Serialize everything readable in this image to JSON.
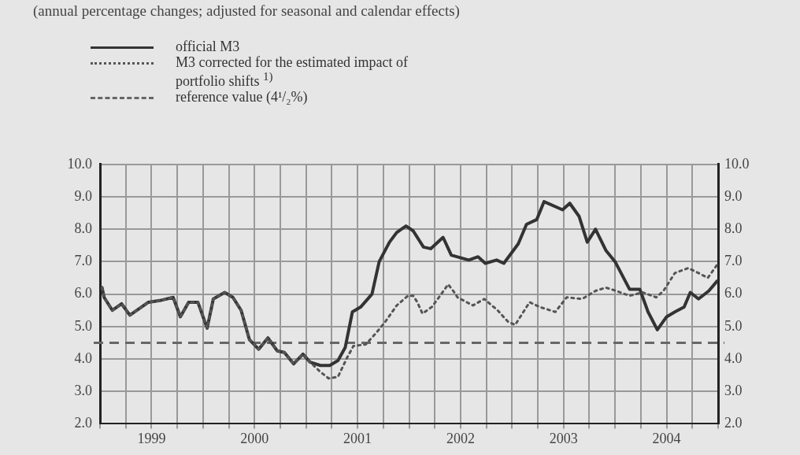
{
  "chart_data": {
    "type": "line",
    "title": "(annual percentage changes; adjusted for seasonal and calendar effects)",
    "xlim": [
      1999,
      2005
    ],
    "xticks": [
      {
        "value": 1999,
        "label": null
      },
      {
        "value": 1999.25,
        "label": null
      },
      {
        "value": 1999.5,
        "label": "1999"
      },
      {
        "value": 1999.75,
        "label": null
      },
      {
        "value": 2000,
        "label": null
      },
      {
        "value": 2000.25,
        "label": null
      },
      {
        "value": 2000.5,
        "label": "2000"
      },
      {
        "value": 2000.75,
        "label": null
      },
      {
        "value": 2001,
        "label": null
      },
      {
        "value": 2001.25,
        "label": null
      },
      {
        "value": 2001.5,
        "label": "2001"
      },
      {
        "value": 2001.75,
        "label": null
      },
      {
        "value": 2002,
        "label": null
      },
      {
        "value": 2002.25,
        "label": null
      },
      {
        "value": 2002.5,
        "label": "2002"
      },
      {
        "value": 2002.75,
        "label": null
      },
      {
        "value": 2003,
        "label": null
      },
      {
        "value": 2003.25,
        "label": null
      },
      {
        "value": 2003.5,
        "label": "2003"
      },
      {
        "value": 2003.75,
        "label": null
      },
      {
        "value": 2004,
        "label": null
      },
      {
        "value": 2004.25,
        "label": null
      },
      {
        "value": 2004.5,
        "label": "2004"
      },
      {
        "value": 2004.75,
        "label": null
      },
      {
        "value": 2005,
        "label": null
      }
    ],
    "ylim": [
      2,
      10
    ],
    "yticks": [
      {
        "value": 2,
        "label": "2.0"
      },
      {
        "value": 3,
        "label": "3.0"
      },
      {
        "value": 4,
        "label": "4.0"
      },
      {
        "value": 5,
        "label": "5.0"
      },
      {
        "value": 6,
        "label": "6.0"
      },
      {
        "value": 7,
        "label": "7.0"
      },
      {
        "value": 8,
        "label": "8.0"
      },
      {
        "value": 9,
        "label": "9.0"
      },
      {
        "value": 10,
        "label": "10.0"
      }
    ],
    "y2lim": [
      2,
      10
    ],
    "y2ticks": [
      {
        "value": 2,
        "label": "2.0"
      },
      {
        "value": 3,
        "label": "3.0"
      },
      {
        "value": 4,
        "label": "4.0"
      },
      {
        "value": 5,
        "label": "5.0"
      },
      {
        "value": 6,
        "label": "6.0"
      },
      {
        "value": 7,
        "label": "7.0"
      },
      {
        "value": 8,
        "label": "8.0"
      },
      {
        "value": 9,
        "label": "9.0"
      },
      {
        "value": 10,
        "label": "10.0"
      }
    ],
    "grid": true,
    "legend": "top left",
    "marker": "none",
    "series": [
      {
        "name": "official M3",
        "color": "#333333",
        "line_style": "solid",
        "x": [
          1999.02,
          1999.04,
          1999.12,
          1999.21,
          1999.29,
          1999.47,
          1999.58,
          1999.71,
          1999.78,
          1999.86,
          1999.95,
          2000.04,
          2000.1,
          2000.21,
          2000.29,
          2000.37,
          2000.45,
          2000.54,
          2000.63,
          2000.72,
          2000.79,
          2000.88,
          2000.97,
          2001.04,
          2001.14,
          2001.23,
          2001.31,
          2001.38,
          2001.45,
          2001.53,
          2001.64,
          2001.71,
          2001.81,
          2001.88,
          2001.97,
          2002.04,
          2002.14,
          2002.21,
          2002.33,
          2002.41,
          2002.58,
          2002.67,
          2002.74,
          2002.85,
          2002.92,
          2003.06,
          2003.14,
          2003.24,
          2003.31,
          2003.49,
          2003.56,
          2003.65,
          2003.73,
          2003.81,
          2003.91,
          2004,
          2004.14,
          2004.24,
          2004.32,
          2004.41,
          2004.5,
          2004.58,
          2004.67,
          2004.73,
          2004.81,
          2004.91,
          2004.99
        ],
        "values": [
          6.2,
          5.9,
          5.5,
          5.7,
          5.35,
          5.75,
          5.8,
          5.9,
          5.3,
          5.75,
          5.75,
          4.95,
          5.85,
          6.05,
          5.9,
          5.5,
          4.6,
          4.3,
          4.65,
          4.25,
          4.2,
          3.85,
          4.15,
          3.9,
          3.8,
          3.8,
          3.95,
          4.35,
          5.45,
          5.6,
          6.0,
          7.0,
          7.6,
          7.9,
          8.1,
          7.95,
          7.45,
          7.4,
          7.75,
          7.2,
          7.05,
          7.15,
          6.95,
          7.05,
          6.95,
          7.55,
          8.15,
          8.3,
          8.85,
          8.6,
          8.8,
          8.4,
          7.6,
          8.0,
          7.35,
          7.0,
          6.15,
          6.15,
          5.45,
          4.9,
          5.3,
          5.45,
          5.6,
          6.05,
          5.85,
          6.1,
          6.4
        ]
      },
      {
        "name": "M3 corrected for the estimated impact of portfolio shifts $^{1)}$",
        "color": "#555555",
        "line_style": "dotted",
        "x": [
          1999.02,
          1999.04,
          1999.12,
          1999.21,
          1999.29,
          1999.47,
          1999.58,
          1999.71,
          1999.78,
          1999.86,
          1999.95,
          2000.04,
          2000.1,
          2000.21,
          2000.29,
          2000.37,
          2000.45,
          2000.54,
          2000.63,
          2000.72,
          2000.79,
          2000.88,
          2000.97,
          2001.04,
          2001.14,
          2001.22,
          2001.31,
          2001.4,
          2001.46,
          2001.58,
          2001.68,
          2001.77,
          2001.88,
          2001.99,
          2002.04,
          2002.08,
          2002.13,
          2002.22,
          2002.29,
          2002.38,
          2002.44,
          2002.47,
          2002.62,
          2002.73,
          2002.86,
          2002.96,
          2003.03,
          2003.09,
          2003.17,
          2003.27,
          2003.42,
          2003.53,
          2003.68,
          2003.81,
          2003.91,
          2004.01,
          2004.14,
          2004.27,
          2004.4,
          2004.47,
          2004.58,
          2004.71,
          2004.81,
          2004.9,
          2004.99
        ],
        "values": [
          6.2,
          5.9,
          5.5,
          5.7,
          5.35,
          5.75,
          5.8,
          5.9,
          5.3,
          5.75,
          5.75,
          4.95,
          5.85,
          6.05,
          5.9,
          5.5,
          4.6,
          4.3,
          4.65,
          4.25,
          4.2,
          3.85,
          4.15,
          3.9,
          3.6,
          3.4,
          3.45,
          4.05,
          4.4,
          4.45,
          4.8,
          5.15,
          5.65,
          5.95,
          5.95,
          5.75,
          5.4,
          5.6,
          5.9,
          6.3,
          6.05,
          5.9,
          5.65,
          5.85,
          5.5,
          5.15,
          5.05,
          5.35,
          5.75,
          5.6,
          5.45,
          5.9,
          5.85,
          6.1,
          6.2,
          6.1,
          5.95,
          6.05,
          5.9,
          6.1,
          6.65,
          6.8,
          6.65,
          6.5,
          6.9
        ]
      }
    ],
    "ref_lines": [
      {
        "axis": "y",
        "value": 4.5,
        "label": "reference value (4¹/₂%)",
        "color": "#666666",
        "line_style": "dashed"
      }
    ]
  }
}
